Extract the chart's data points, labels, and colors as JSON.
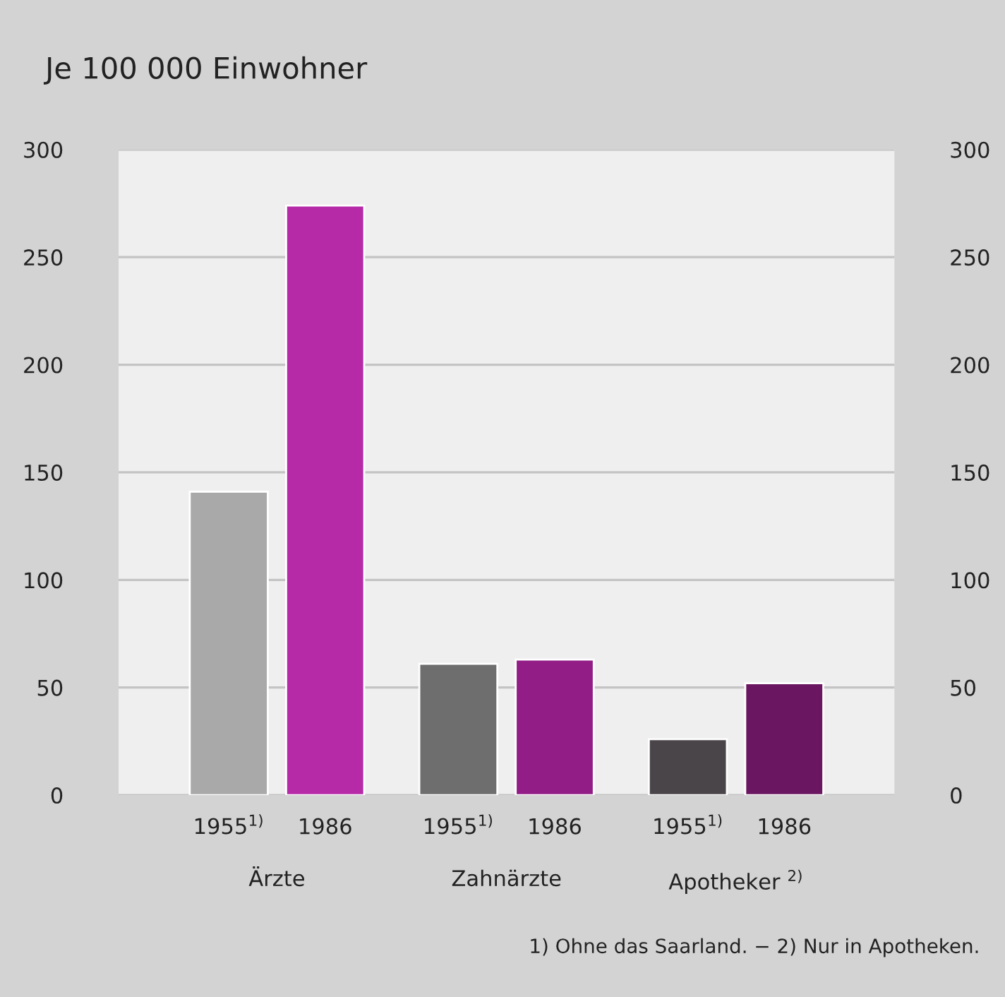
{
  "chart_data": {
    "type": "bar",
    "title": "Je 100 000 Einwohner",
    "categories": [
      "Ärzte",
      "Zahnärzte",
      "Apotheker $^{2)}$"
    ],
    "series": [
      {
        "name": "1955$^{1)}$",
        "colors": [
          "#a9a9a9",
          "#6e6e6e",
          "#4a4548"
        ],
        "values": [
          141,
          61,
          26
        ]
      },
      {
        "name": "1986",
        "colors": [
          "#b62aa8",
          "#931d86",
          "#6b1660"
        ],
        "values": [
          274,
          63,
          52
        ]
      }
    ],
    "ylim": [
      0,
      300
    ],
    "yticks": [
      0,
      50,
      100,
      150,
      200,
      250,
      300
    ],
    "y2lim": [
      0,
      300
    ],
    "y2ticks": [
      0,
      50,
      100,
      150,
      200,
      250,
      300
    ],
    "grid": "y",
    "legend": false,
    "annotations": [
      "1) Ohne das Saarland. − 2) Nur in Apotheken."
    ]
  }
}
